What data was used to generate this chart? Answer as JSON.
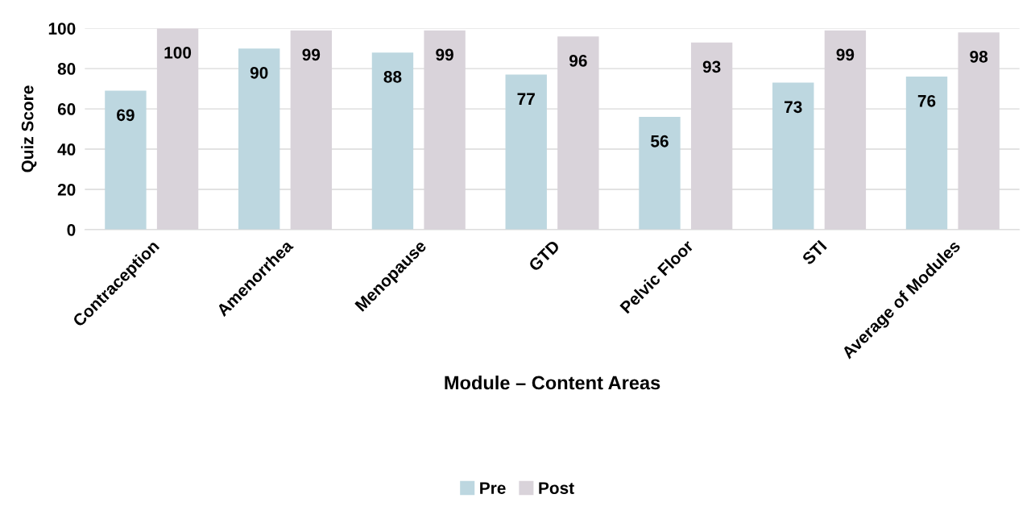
{
  "chart_data": {
    "type": "bar",
    "xlabel": "Module – Content Areas",
    "ylabel": "Quiz Score",
    "categories": [
      "Contraception",
      "Amenorrhea",
      "Menopause",
      "GTD",
      "Pelvic Floor",
      "STI",
      "Average of Modules"
    ],
    "series": [
      {
        "name": "Pre",
        "color": "#bdd7e0",
        "values": [
          69,
          90,
          88,
          77,
          56,
          73,
          76
        ]
      },
      {
        "name": "Post",
        "color": "#d9d3da",
        "values": [
          100,
          99,
          99,
          96,
          93,
          99,
          98
        ]
      }
    ],
    "ylim": [
      0,
      100
    ],
    "yticks": [
      0,
      20,
      40,
      60,
      80,
      100
    ],
    "grid": "y",
    "legend": "bottom",
    "data_labels": true
  }
}
